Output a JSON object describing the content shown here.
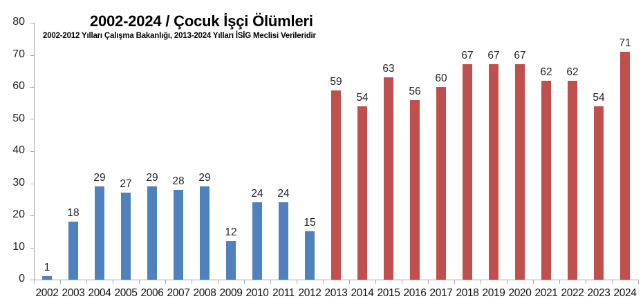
{
  "chart_data": {
    "type": "bar",
    "title": "2002-2024 / Çocuk İşçi Ölümleri",
    "subtitle": "2002-2012 Yılları Çalışma Bakanlığı, 2013-2024 Yılları İSİG Meclisi Verileridir",
    "xlabel": "",
    "ylabel": "",
    "ylim": [
      0,
      80
    ],
    "yticks": [
      0,
      10,
      20,
      30,
      40,
      50,
      60,
      70,
      80
    ],
    "grid": false,
    "legend": null,
    "categories": [
      "2002",
      "2003",
      "2004",
      "2005",
      "2006",
      "2007",
      "2008",
      "2009",
      "2010",
      "2011",
      "2012",
      "2013",
      "2014",
      "2015",
      "2016",
      "2017",
      "2018",
      "2019",
      "2020",
      "2021",
      "2022",
      "2023",
      "2024"
    ],
    "values": [
      1,
      18,
      29,
      27,
      29,
      28,
      29,
      12,
      24,
      24,
      15,
      59,
      54,
      63,
      56,
      60,
      67,
      67,
      67,
      62,
      62,
      54,
      71
    ],
    "series": [
      {
        "name": "Çalışma Bakanlığı (2002-2012)",
        "color": "#4F81BD",
        "categories": [
          "2002",
          "2003",
          "2004",
          "2005",
          "2006",
          "2007",
          "2008",
          "2009",
          "2010",
          "2011",
          "2012"
        ],
        "values": [
          1,
          18,
          29,
          27,
          29,
          28,
          29,
          12,
          24,
          24,
          15
        ]
      },
      {
        "name": "İSİG Meclisi (2013-2024)",
        "color": "#C0504D",
        "categories": [
          "2013",
          "2014",
          "2015",
          "2016",
          "2017",
          "2018",
          "2019",
          "2020",
          "2021",
          "2022",
          "2023",
          "2024"
        ],
        "values": [
          59,
          54,
          63,
          56,
          60,
          67,
          67,
          67,
          62,
          62,
          54,
          71
        ]
      }
    ],
    "data_labels": true
  },
  "colors": {
    "blue": "#4F81BD",
    "red": "#C0504D",
    "axis": "#A6A6A6"
  }
}
